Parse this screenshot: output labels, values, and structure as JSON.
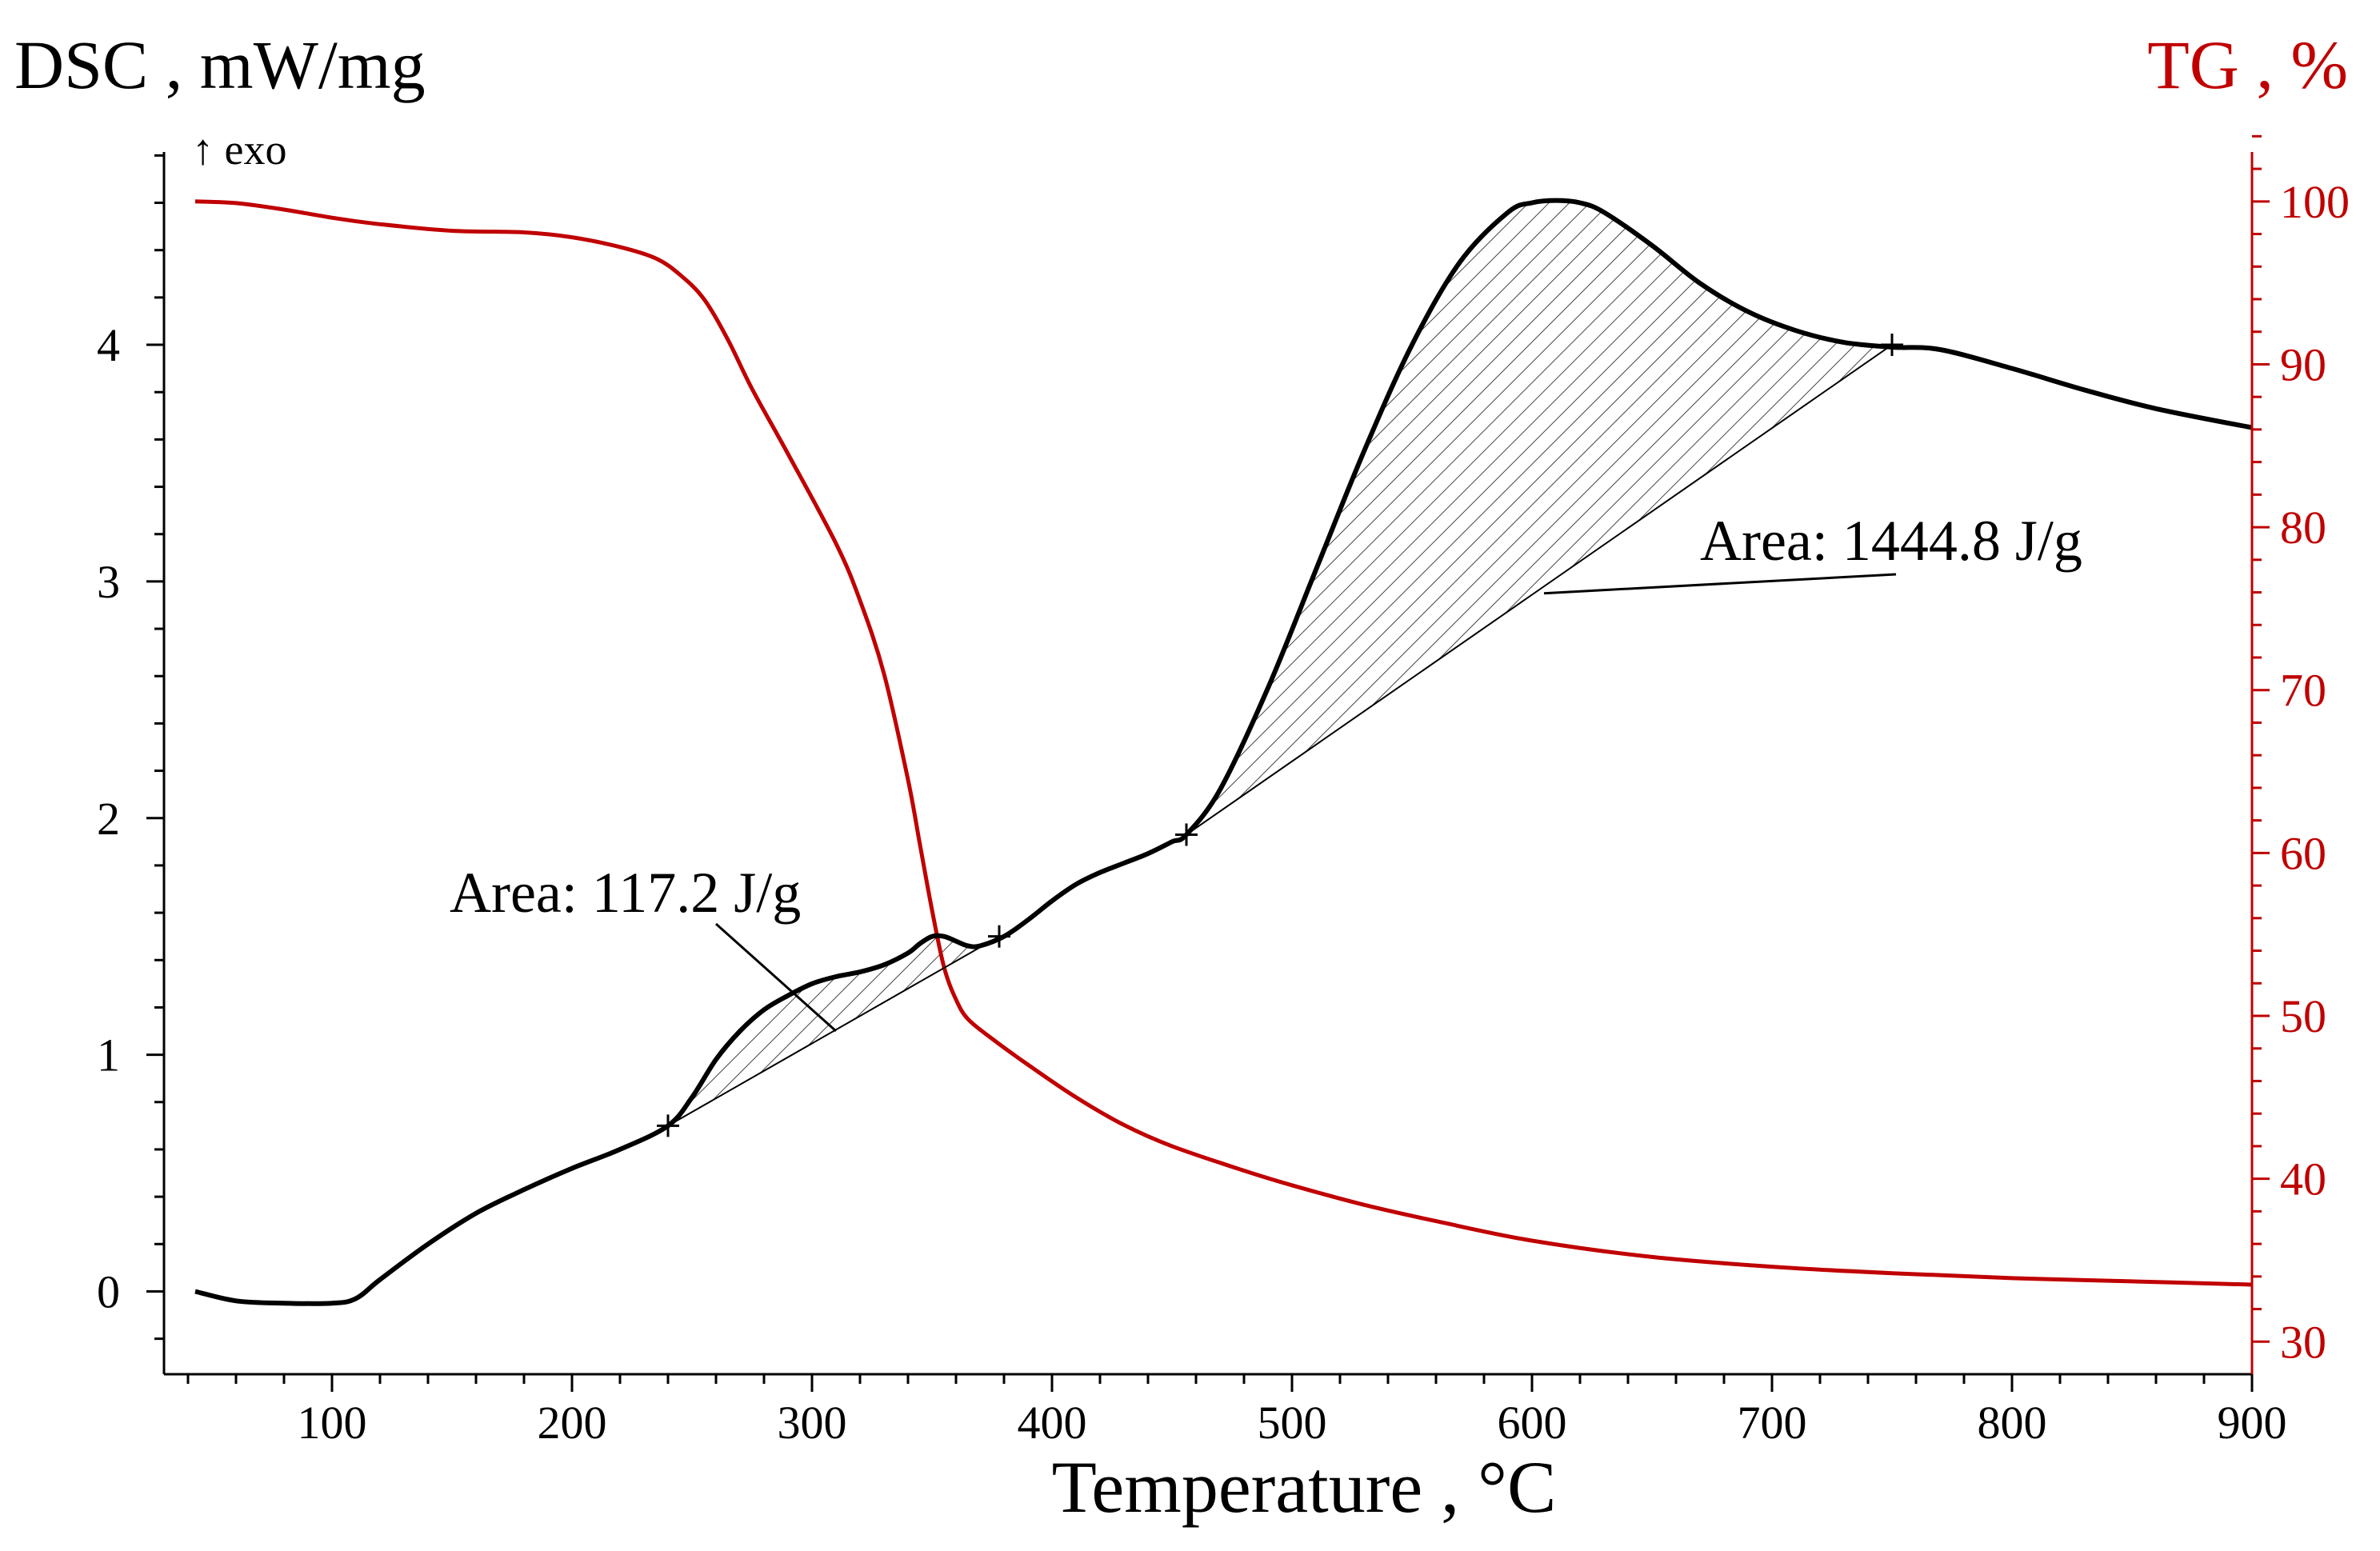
{
  "chart_data": {
    "type": "line",
    "left_axis_title": "DSC , mW/mg",
    "right_axis_title": "TG , %",
    "exo_label": "↑ exo",
    "xlabel": "Temperature , °C",
    "xlim": [
      30,
      900
    ],
    "ylim_left": [
      -0.35,
      4.95
    ],
    "ylim_right": [
      28,
      105
    ],
    "x_ticks": [
      100,
      200,
      300,
      400,
      500,
      600,
      700,
      800,
      900
    ],
    "y_left_ticks": [
      0,
      1,
      2,
      3,
      4
    ],
    "y_right_ticks": [
      30,
      40,
      50,
      60,
      70,
      80,
      90,
      100
    ],
    "series": [
      {
        "name": "DSC",
        "axis": "left",
        "color": "#000000",
        "x": [
          43,
          60,
          80,
          100,
          110,
          120,
          140,
          160,
          180,
          200,
          220,
          240,
          250,
          260,
          270,
          280,
          290,
          300,
          310,
          320,
          330,
          340,
          345,
          350,
          355,
          360,
          365,
          370,
          380,
          390,
          400,
          410,
          420,
          430,
          440,
          450,
          456,
          470,
          490,
          510,
          530,
          550,
          570,
          590,
          600,
          610,
          620,
          630,
          650,
          670,
          690,
          710,
          730,
          750,
          770,
          800,
          830,
          860,
          900
        ],
        "y": [
          0.0,
          -0.04,
          -0.05,
          -0.05,
          -0.03,
          0.05,
          0.2,
          0.33,
          0.43,
          0.52,
          0.6,
          0.7,
          0.82,
          0.98,
          1.1,
          1.19,
          1.25,
          1.3,
          1.33,
          1.35,
          1.38,
          1.43,
          1.47,
          1.5,
          1.5,
          1.48,
          1.46,
          1.46,
          1.5,
          1.57,
          1.65,
          1.72,
          1.77,
          1.81,
          1.85,
          1.9,
          1.93,
          2.12,
          2.55,
          3.05,
          3.55,
          4.0,
          4.35,
          4.56,
          4.6,
          4.61,
          4.6,
          4.56,
          4.42,
          4.26,
          4.14,
          4.06,
          4.01,
          3.99,
          3.98,
          3.9,
          3.81,
          3.73,
          3.65
        ]
      },
      {
        "name": "TG",
        "axis": "right",
        "color": "#c00000",
        "x": [
          43,
          60,
          80,
          100,
          120,
          150,
          180,
          200,
          220,
          235,
          245,
          255,
          265,
          275,
          290,
          310,
          320,
          330,
          340,
          345,
          350,
          355,
          360,
          365,
          375,
          390,
          410,
          430,
          450,
          480,
          500,
          530,
          560,
          600,
          650,
          700,
          750,
          800,
          850,
          900
        ],
        "y": [
          100,
          99.9,
          99.5,
          99.0,
          98.6,
          98.2,
          98.1,
          97.8,
          97.2,
          96.5,
          95.5,
          94.0,
          91.5,
          88.5,
          84.5,
          79.0,
          75.5,
          71.0,
          64.5,
          60.5,
          56.5,
          53.0,
          51.0,
          49.8,
          48.6,
          47.0,
          45.0,
          43.3,
          42.0,
          40.5,
          39.6,
          38.4,
          37.4,
          36.2,
          35.2,
          34.6,
          34.2,
          33.9,
          33.7,
          33.5
        ]
      }
    ],
    "peaks": [
      {
        "label": "Area: 117.2 J/g",
        "baseline_start": [
          240,
          0.7
        ],
        "baseline_end": [
          378,
          1.5
        ],
        "leader_tip": [
          310,
          1.1
        ]
      },
      {
        "label": "Area: 1444.8 J/g",
        "baseline_start": [
          456,
          1.93
        ],
        "baseline_end": [
          750,
          4.0
        ],
        "leader_tip": [
          605,
          2.95
        ]
      }
    ]
  }
}
